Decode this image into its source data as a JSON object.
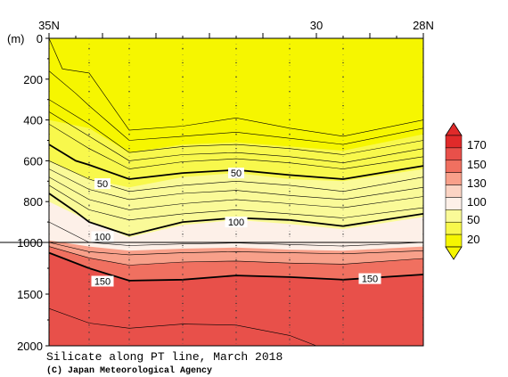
{
  "chart_data": {
    "type": "contour",
    "title": "Silicate along PT line, March 2018",
    "credit": "(C) Japan Meteorological Agency",
    "x_axis": {
      "top_tick_labels": [
        "35N",
        "30",
        "28N"
      ],
      "lat_range": [
        35,
        28
      ],
      "label_latitudes": [
        35,
        30,
        28
      ],
      "station_latitudes": [
        35,
        34.25,
        33.5,
        32.5,
        31.5,
        30.5,
        29.5,
        28
      ]
    },
    "y_axis": {
      "unit_label": "(m)",
      "tick_labels": [
        "0",
        "200",
        "400",
        "600",
        "800",
        "1000",
        "1500",
        "2000"
      ],
      "tick_depths": [
        0,
        200,
        400,
        600,
        800,
        1000,
        1500,
        2000
      ],
      "scale_note": "piecewise linear: 0-1000 m upper panel, 1000-2000 m lower panel",
      "depth_range": [
        0,
        2000
      ]
    },
    "colorbar": {
      "tick_labels": [
        "20",
        "50",
        "100",
        "130",
        "150",
        "170"
      ],
      "levels": [
        20,
        50,
        100,
        130,
        150,
        170
      ],
      "colors": [
        "#f6f600",
        "#f8f84c",
        "#fafa98",
        "#fdf0e8",
        "#fbd4c4",
        "#f8a08a",
        "#f07060",
        "#e8504a",
        "#e02a2a"
      ]
    },
    "contour_labels": [
      {
        "text": "50",
        "lat": 34.0,
        "depth": 712
      },
      {
        "text": "50",
        "lat": 31.5,
        "depth": 660
      },
      {
        "text": "100",
        "lat": 34.0,
        "depth": 972
      },
      {
        "text": "100",
        "lat": 31.5,
        "depth": 900
      },
      {
        "text": "150",
        "lat": 34.0,
        "depth": 1375
      },
      {
        "text": "150",
        "lat": 29.0,
        "depth": 1350
      }
    ],
    "bands": [
      {
        "color": "#e8504a",
        "top": [
          [
            35,
            1100
          ],
          [
            34.25,
            1250
          ],
          [
            33.5,
            1370
          ],
          [
            32.5,
            1360
          ],
          [
            31.5,
            1320
          ],
          [
            30.5,
            1335
          ],
          [
            29.5,
            1360
          ],
          [
            28,
            1310
          ]
        ]
      },
      {
        "color": "#f07060",
        "top": [
          [
            35,
            1040
          ],
          [
            34.25,
            1150
          ],
          [
            33.5,
            1220
          ],
          [
            32.5,
            1190
          ],
          [
            31.5,
            1180
          ],
          [
            30.5,
            1200
          ],
          [
            29.5,
            1210
          ],
          [
            28,
            1155
          ]
        ]
      },
      {
        "color": "#f8a08a",
        "top": [
          [
            35,
            990
          ],
          [
            34.25,
            1040
          ],
          [
            33.5,
            1080
          ],
          [
            32.5,
            1060
          ],
          [
            31.5,
            1050
          ],
          [
            30.5,
            1070
          ],
          [
            29.5,
            1080
          ],
          [
            28,
            1040
          ]
        ]
      },
      {
        "color": "#fdf0e8",
        "top": [
          [
            35,
            800
          ],
          [
            34.25,
            895
          ],
          [
            33.5,
            975
          ],
          [
            32.5,
            915
          ],
          [
            31.5,
            890
          ],
          [
            30.5,
            910
          ],
          [
            29.5,
            935
          ],
          [
            28,
            875
          ]
        ]
      },
      {
        "color": "#fafa98",
        "top": [
          [
            35,
            600
          ],
          [
            34.25,
            690
          ],
          [
            33.5,
            730
          ],
          [
            32.5,
            680
          ],
          [
            31.5,
            660
          ],
          [
            30.5,
            690
          ],
          [
            29.5,
            700
          ],
          [
            28,
            640
          ]
        ]
      },
      {
        "color": "#f8f84c",
        "top": [
          [
            35,
            400
          ],
          [
            34.25,
            440
          ],
          [
            33.5,
            560
          ],
          [
            32.5,
            520
          ],
          [
            31.5,
            510
          ],
          [
            30.5,
            530
          ],
          [
            29.5,
            550
          ],
          [
            28,
            470
          ]
        ]
      }
    ],
    "contours": [
      {
        "level": "minor",
        "pts": [
          [
            35,
            0
          ],
          [
            34.75,
            150
          ],
          [
            34.25,
            170
          ],
          [
            33.5,
            450
          ],
          [
            32.5,
            430
          ],
          [
            31.5,
            390
          ],
          [
            30.5,
            440
          ],
          [
            29.5,
            480
          ],
          [
            28,
            400
          ]
        ]
      },
      {
        "level": "minor",
        "pts": [
          [
            35,
            160
          ],
          [
            34.5,
            270
          ],
          [
            34.25,
            330
          ],
          [
            33.5,
            500
          ],
          [
            32.5,
            480
          ],
          [
            31.5,
            460
          ],
          [
            30.5,
            490
          ],
          [
            29.5,
            520
          ],
          [
            28,
            440
          ]
        ]
      },
      {
        "level": "minor",
        "pts": [
          [
            35,
            300
          ],
          [
            34.25,
            420
          ],
          [
            33.5,
            560
          ],
          [
            32.5,
            530
          ],
          [
            31.5,
            520
          ],
          [
            30.5,
            540
          ],
          [
            29.5,
            570
          ],
          [
            28,
            500
          ]
        ]
      },
      {
        "level": "minor",
        "pts": [
          [
            35,
            360
          ],
          [
            34.25,
            480
          ],
          [
            33.5,
            600
          ],
          [
            32.5,
            570
          ],
          [
            31.5,
            560
          ],
          [
            30.5,
            580
          ],
          [
            29.5,
            610
          ],
          [
            28,
            540
          ]
        ]
      },
      {
        "level": "minor",
        "pts": [
          [
            35,
            420
          ],
          [
            34.25,
            540
          ],
          [
            33.5,
            640
          ],
          [
            32.5,
            605
          ],
          [
            31.5,
            590
          ],
          [
            30.5,
            610
          ],
          [
            29.5,
            640
          ],
          [
            28,
            580
          ]
        ]
      },
      {
        "level": "major",
        "pts": [
          [
            35,
            520
          ],
          [
            34.5,
            600
          ],
          [
            34.25,
            620
          ],
          [
            33.5,
            690
          ],
          [
            32.5,
            660
          ],
          [
            31.5,
            645
          ],
          [
            30.5,
            670
          ],
          [
            29.5,
            690
          ],
          [
            28,
            625
          ]
        ]
      },
      {
        "level": "minor",
        "pts": [
          [
            35,
            600
          ],
          [
            34.25,
            690
          ],
          [
            33.5,
            750
          ],
          [
            32.5,
            720
          ],
          [
            31.5,
            700
          ],
          [
            30.5,
            720
          ],
          [
            29.5,
            750
          ],
          [
            28,
            680
          ]
        ]
      },
      {
        "level": "minor",
        "pts": [
          [
            35,
            640
          ],
          [
            34.25,
            740
          ],
          [
            33.5,
            790
          ],
          [
            32.5,
            760
          ],
          [
            31.5,
            745
          ],
          [
            30.5,
            770
          ],
          [
            29.5,
            790
          ],
          [
            28,
            730
          ]
        ]
      },
      {
        "level": "minor",
        "pts": [
          [
            35,
            680
          ],
          [
            34.25,
            790
          ],
          [
            33.5,
            840
          ],
          [
            32.5,
            810
          ],
          [
            31.5,
            790
          ],
          [
            30.5,
            810
          ],
          [
            29.5,
            830
          ],
          [
            28,
            775
          ]
        ]
      },
      {
        "level": "minor",
        "pts": [
          [
            35,
            720
          ],
          [
            34.25,
            840
          ],
          [
            33.5,
            890
          ],
          [
            32.5,
            860
          ],
          [
            31.5,
            840
          ],
          [
            30.5,
            860
          ],
          [
            29.5,
            880
          ],
          [
            28,
            830
          ]
        ]
      },
      {
        "level": "major",
        "pts": [
          [
            35,
            760
          ],
          [
            34.5,
            850
          ],
          [
            34.25,
            900
          ],
          [
            33.5,
            965
          ],
          [
            32.5,
            900
          ],
          [
            31.5,
            880
          ],
          [
            30.5,
            890
          ],
          [
            29.5,
            920
          ],
          [
            28,
            860
          ]
        ]
      },
      {
        "level": "minor",
        "pts": [
          [
            35,
            900
          ],
          [
            34.25,
            1000
          ],
          [
            33.5,
            1030
          ],
          [
            32.5,
            1015
          ],
          [
            31.5,
            1005
          ],
          [
            30.5,
            1020
          ],
          [
            29.5,
            1035
          ],
          [
            28,
            1000
          ]
        ]
      },
      {
        "level": "minor",
        "pts": [
          [
            35,
            1000
          ],
          [
            34.25,
            1090
          ],
          [
            33.5,
            1120
          ],
          [
            32.5,
            1100
          ],
          [
            31.5,
            1090
          ],
          [
            30.5,
            1100
          ],
          [
            29.5,
            1110
          ],
          [
            28,
            1080
          ]
        ]
      },
      {
        "level": "minor",
        "pts": [
          [
            35,
            1040
          ],
          [
            34.25,
            1150
          ],
          [
            33.5,
            1220
          ],
          [
            32.5,
            1190
          ],
          [
            31.5,
            1180
          ],
          [
            30.5,
            1200
          ],
          [
            29.5,
            1210
          ],
          [
            28,
            1155
          ]
        ]
      },
      {
        "level": "major",
        "pts": [
          [
            35,
            1100
          ],
          [
            34.25,
            1250
          ],
          [
            33.5,
            1370
          ],
          [
            32.5,
            1360
          ],
          [
            31.5,
            1320
          ],
          [
            30.5,
            1335
          ],
          [
            29.5,
            1360
          ],
          [
            28,
            1310
          ]
        ]
      },
      {
        "level": "minor",
        "pts": [
          [
            35,
            1640
          ],
          [
            34.25,
            1780
          ],
          [
            33.5,
            1830
          ],
          [
            32.5,
            1790
          ],
          [
            31.5,
            1800
          ],
          [
            30.5,
            1900
          ],
          [
            30,
            2000
          ]
        ]
      }
    ]
  }
}
